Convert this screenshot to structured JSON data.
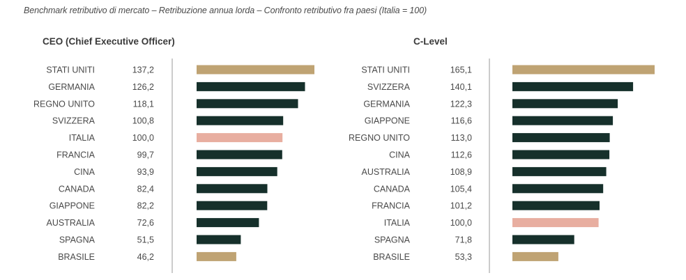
{
  "header": {
    "subtitle": "Benchmark retributivo di mercato – Retribuzione annua lorda – Confronto retributivo fra paesi (Italia = 100)"
  },
  "colors": {
    "dark": "#16302b",
    "gold": "#bfa373",
    "pink": "#e8aea0",
    "axis": "#9a9a9a"
  },
  "chart_data": [
    {
      "type": "bar",
      "orientation": "horizontal",
      "title": "CEO (Chief Executive Officer)",
      "categories": [
        "STATI UNITI",
        "GERMANIA",
        "REGNO UNITO",
        "SVIZZERA",
        "ITALIA",
        "FRANCIA",
        "CINA",
        "CANADA",
        "GIAPPONE",
        "AUSTRALIA",
        "SPAGNA",
        "BRASILE"
      ],
      "values": [
        137.2,
        126.2,
        118.1,
        100.8,
        100.0,
        99.7,
        93.9,
        82.4,
        82.2,
        72.6,
        51.5,
        46.2
      ],
      "value_labels": [
        "137,2",
        "126,2",
        "118,1",
        "100,8",
        "100,0",
        "99,7",
        "93,9",
        "82,4",
        "82,2",
        "72,6",
        "51,5",
        "46,2"
      ],
      "bar_colors": [
        "gold",
        "dark",
        "dark",
        "dark",
        "pink",
        "dark",
        "dark",
        "dark",
        "dark",
        "dark",
        "dark",
        "gold"
      ],
      "xlim": [
        0,
        137.2
      ]
    },
    {
      "type": "bar",
      "orientation": "horizontal",
      "title": "C-Level",
      "categories": [
        "STATI UNITI",
        "SVIZZERA",
        "GERMANIA",
        "GIAPPONE",
        "REGNO UNITO",
        "CINA",
        "AUSTRALIA",
        "CANADA",
        "FRANCIA",
        "ITALIA",
        "SPAGNA",
        "BRASILE"
      ],
      "values": [
        165.1,
        140.1,
        122.3,
        116.6,
        113.0,
        112.6,
        108.9,
        105.4,
        101.2,
        100.0,
        71.8,
        53.3
      ],
      "value_labels": [
        "165,1",
        "140,1",
        "122,3",
        "116,6",
        "113,0",
        "112,6",
        "108,9",
        "105,4",
        "101,2",
        "100,0",
        "71,8",
        "53,3"
      ],
      "bar_colors": [
        "gold",
        "dark",
        "dark",
        "dark",
        "dark",
        "dark",
        "dark",
        "dark",
        "dark",
        "pink",
        "dark",
        "gold"
      ],
      "xlim": [
        0,
        165.1
      ]
    }
  ]
}
